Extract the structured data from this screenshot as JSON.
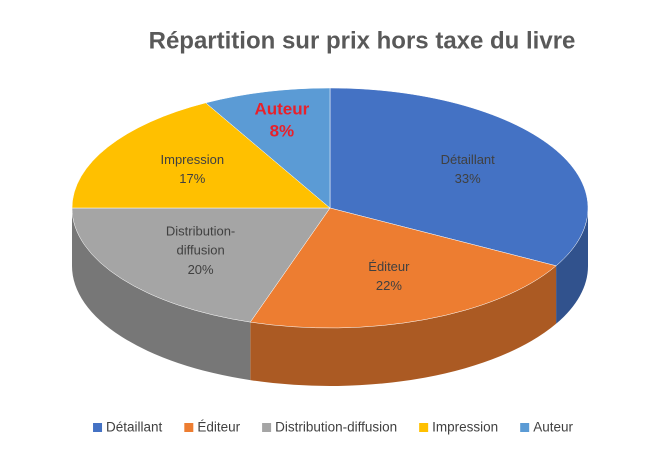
{
  "chart_data": {
    "type": "pie3d",
    "title": "Répartition sur prix hors taxe du livre",
    "categories": [
      "Détaillant",
      "Éditeur",
      "Distribution-diffusion",
      "Impression",
      "Auteur"
    ],
    "values": [
      33,
      22,
      20,
      17,
      8
    ],
    "value_labels": [
      "33%",
      "22%",
      "20%",
      "17%",
      "8%"
    ],
    "colors": [
      "#4472c4",
      "#ed7d31",
      "#a5a5a5",
      "#ffc000",
      "#5b9bd5"
    ],
    "legend": "bottom"
  }
}
